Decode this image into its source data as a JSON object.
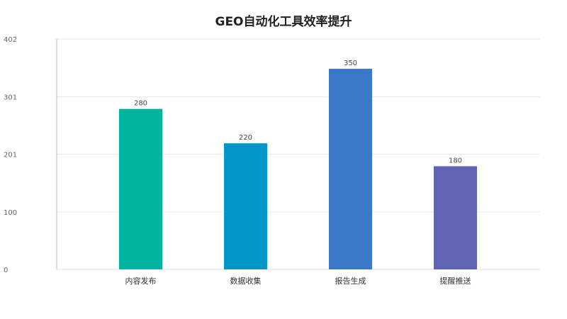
{
  "chart_data": {
    "type": "bar",
    "title": "GEO自动化工具效率提升",
    "xlabel": "",
    "ylabel": "",
    "categories": [
      "内容发布",
      "数据收集",
      "报告生成",
      "提醒推送"
    ],
    "values": [
      280,
      220,
      350,
      180
    ],
    "ylim": [
      0,
      402
    ],
    "yticks": [
      0,
      100,
      201,
      301,
      402
    ],
    "ytick_labels": [
      "0",
      "100",
      "201",
      "301",
      "402"
    ],
    "data_labels": [
      "280",
      "220",
      "350",
      "180"
    ],
    "colors": [
      "#00b5a0",
      "#0096c7",
      "#3a78c8",
      "#6164b4"
    ],
    "grid": true,
    "legend": "none"
  }
}
